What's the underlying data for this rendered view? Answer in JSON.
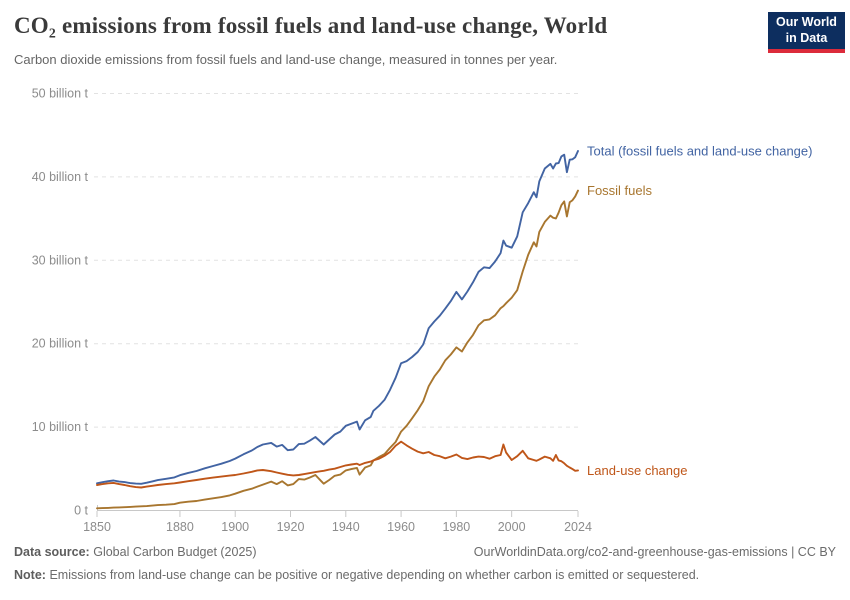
{
  "logo": {
    "line1": "Our World",
    "line2": "in Data",
    "bg_color": "#0d2e5f",
    "accent_color": "#dc2b3b"
  },
  "footer": {
    "source_label": "Data source:",
    "source_value": "Global Carbon Budget (2025)",
    "link": "OurWorldinData.org/co2-and-greenhouse-gas-emissions | CC BY",
    "note_label": "Note:",
    "note_value": "Emissions from land-use change can be positive or negative depending on whether carbon is emitted or sequestered."
  },
  "chart_data": {
    "type": "line",
    "title": "CO₂ emissions from fossil fuels and land-use change, World",
    "subtitle": "Carbon dioxide emissions from fossil fuels and land-use change, measured in tonnes per year.",
    "unit": "billion tonnes of CO₂ per year",
    "xlim": [
      1850,
      2024
    ],
    "ylim": [
      0,
      50
    ],
    "x_ticks": [
      1850,
      1880,
      1900,
      1920,
      1940,
      1960,
      1980,
      2000,
      2024
    ],
    "y_ticks": [
      0,
      10,
      20,
      30,
      40,
      50
    ],
    "y_tick_labels": [
      "0 t",
      "10 billion t",
      "20 billion t",
      "30 billion t",
      "40 billion t",
      "50 billion t"
    ],
    "grid": "horizontal-dashed",
    "legend_position": "end-of-line-labels",
    "axis_text_color": "#8c8c8c",
    "grid_color": "#e2e2e2",
    "axis_line_color": "#c8c8c8",
    "x": [
      1850,
      1852,
      1854,
      1856,
      1858,
      1860,
      1862,
      1864,
      1866,
      1868,
      1870,
      1872,
      1875,
      1878,
      1880,
      1883,
      1886,
      1889,
      1892,
      1895,
      1898,
      1900,
      1903,
      1906,
      1908,
      1910,
      1913,
      1915,
      1917,
      1919,
      1921,
      1923,
      1925,
      1927,
      1929,
      1931,
      1932,
      1934,
      1936,
      1938,
      1940,
      1942,
      1944,
      1945,
      1947,
      1949,
      1950,
      1952,
      1954,
      1956,
      1958,
      1960,
      1962,
      1964,
      1966,
      1968,
      1970,
      1972,
      1974,
      1976,
      1978,
      1980,
      1982,
      1984,
      1986,
      1988,
      1990,
      1992,
      1994,
      1996,
      1997,
      1998,
      2000,
      2002,
      2004,
      2006,
      2008,
      2009,
      2010,
      2012,
      2014,
      2015,
      2016,
      2017,
      2018,
      2019,
      2020,
      2021,
      2022,
      2023,
      2024
    ],
    "series": [
      {
        "name": "Total (fossil fuels and land-use change)",
        "color": "#4264a3",
        "values": [
          3.2,
          3.33,
          3.45,
          3.54,
          3.41,
          3.34,
          3.22,
          3.16,
          3.14,
          3.27,
          3.43,
          3.59,
          3.74,
          3.91,
          4.17,
          4.45,
          4.68,
          5.0,
          5.28,
          5.55,
          5.87,
          6.16,
          6.68,
          7.13,
          7.55,
          7.85,
          8.05,
          7.6,
          7.8,
          7.17,
          7.25,
          7.9,
          7.95,
          8.32,
          8.75,
          8.15,
          7.85,
          8.45,
          9.05,
          9.4,
          10.1,
          10.35,
          10.6,
          9.65,
          10.75,
          11.15,
          11.9,
          12.5,
          13.2,
          14.4,
          15.85,
          17.6,
          17.85,
          18.35,
          18.95,
          19.85,
          21.8,
          22.6,
          23.3,
          24.15,
          25.05,
          26.15,
          25.25,
          26.2,
          27.3,
          28.55,
          29.1,
          29.0,
          29.8,
          30.8,
          32.3,
          31.7,
          31.45,
          32.8,
          35.7,
          36.8,
          38.1,
          37.5,
          39.4,
          40.95,
          41.5,
          40.95,
          41.55,
          41.6,
          42.4,
          42.6,
          40.5,
          42.0,
          42.05,
          42.3,
          43.05
        ]
      },
      {
        "name": "Fossil fuels",
        "color": "#a8762f",
        "values": [
          0.2,
          0.23,
          0.25,
          0.29,
          0.31,
          0.34,
          0.37,
          0.41,
          0.44,
          0.47,
          0.53,
          0.59,
          0.64,
          0.71,
          0.87,
          1.0,
          1.08,
          1.25,
          1.4,
          1.55,
          1.75,
          1.96,
          2.3,
          2.55,
          2.8,
          3.05,
          3.4,
          3.1,
          3.45,
          2.95,
          3.1,
          3.7,
          3.65,
          3.9,
          4.2,
          3.5,
          3.15,
          3.6,
          4.1,
          4.25,
          4.75,
          4.9,
          5.05,
          4.25,
          5.1,
          5.35,
          5.95,
          6.35,
          6.7,
          7.45,
          8.15,
          9.4,
          10.1,
          11.0,
          11.95,
          13.05,
          14.85,
          16.0,
          16.85,
          17.95,
          18.65,
          19.5,
          19.0,
          20.1,
          21.0,
          22.15,
          22.75,
          22.85,
          23.35,
          24.2,
          24.45,
          24.8,
          25.45,
          26.35,
          28.6,
          30.6,
          32.1,
          31.6,
          33.35,
          34.55,
          35.3,
          35.05,
          34.95,
          35.65,
          36.55,
          37.0,
          35.2,
          36.9,
          37.15,
          37.6,
          38.3
        ]
      },
      {
        "name": "Land-use change",
        "color": "#bf5619",
        "values": [
          3.0,
          3.1,
          3.2,
          3.25,
          3.1,
          3.0,
          2.85,
          2.75,
          2.7,
          2.8,
          2.9,
          3.0,
          3.1,
          3.2,
          3.3,
          3.45,
          3.6,
          3.75,
          3.88,
          4.0,
          4.12,
          4.2,
          4.38,
          4.58,
          4.75,
          4.8,
          4.65,
          4.5,
          4.35,
          4.22,
          4.15,
          4.2,
          4.3,
          4.42,
          4.55,
          4.65,
          4.7,
          4.85,
          4.95,
          5.15,
          5.35,
          5.45,
          5.55,
          5.4,
          5.65,
          5.8,
          5.95,
          6.15,
          6.5,
          6.95,
          7.7,
          8.2,
          7.75,
          7.35,
          7.0,
          6.8,
          6.95,
          6.6,
          6.45,
          6.2,
          6.4,
          6.65,
          6.25,
          6.1,
          6.3,
          6.4,
          6.35,
          6.15,
          6.45,
          6.6,
          7.85,
          6.9,
          6.0,
          6.45,
          7.1,
          6.2,
          6.0,
          5.9,
          6.05,
          6.4,
          6.2,
          5.9,
          6.6,
          5.95,
          5.85,
          5.6,
          5.3,
          5.1,
          4.9,
          4.7,
          4.75
        ]
      }
    ]
  }
}
